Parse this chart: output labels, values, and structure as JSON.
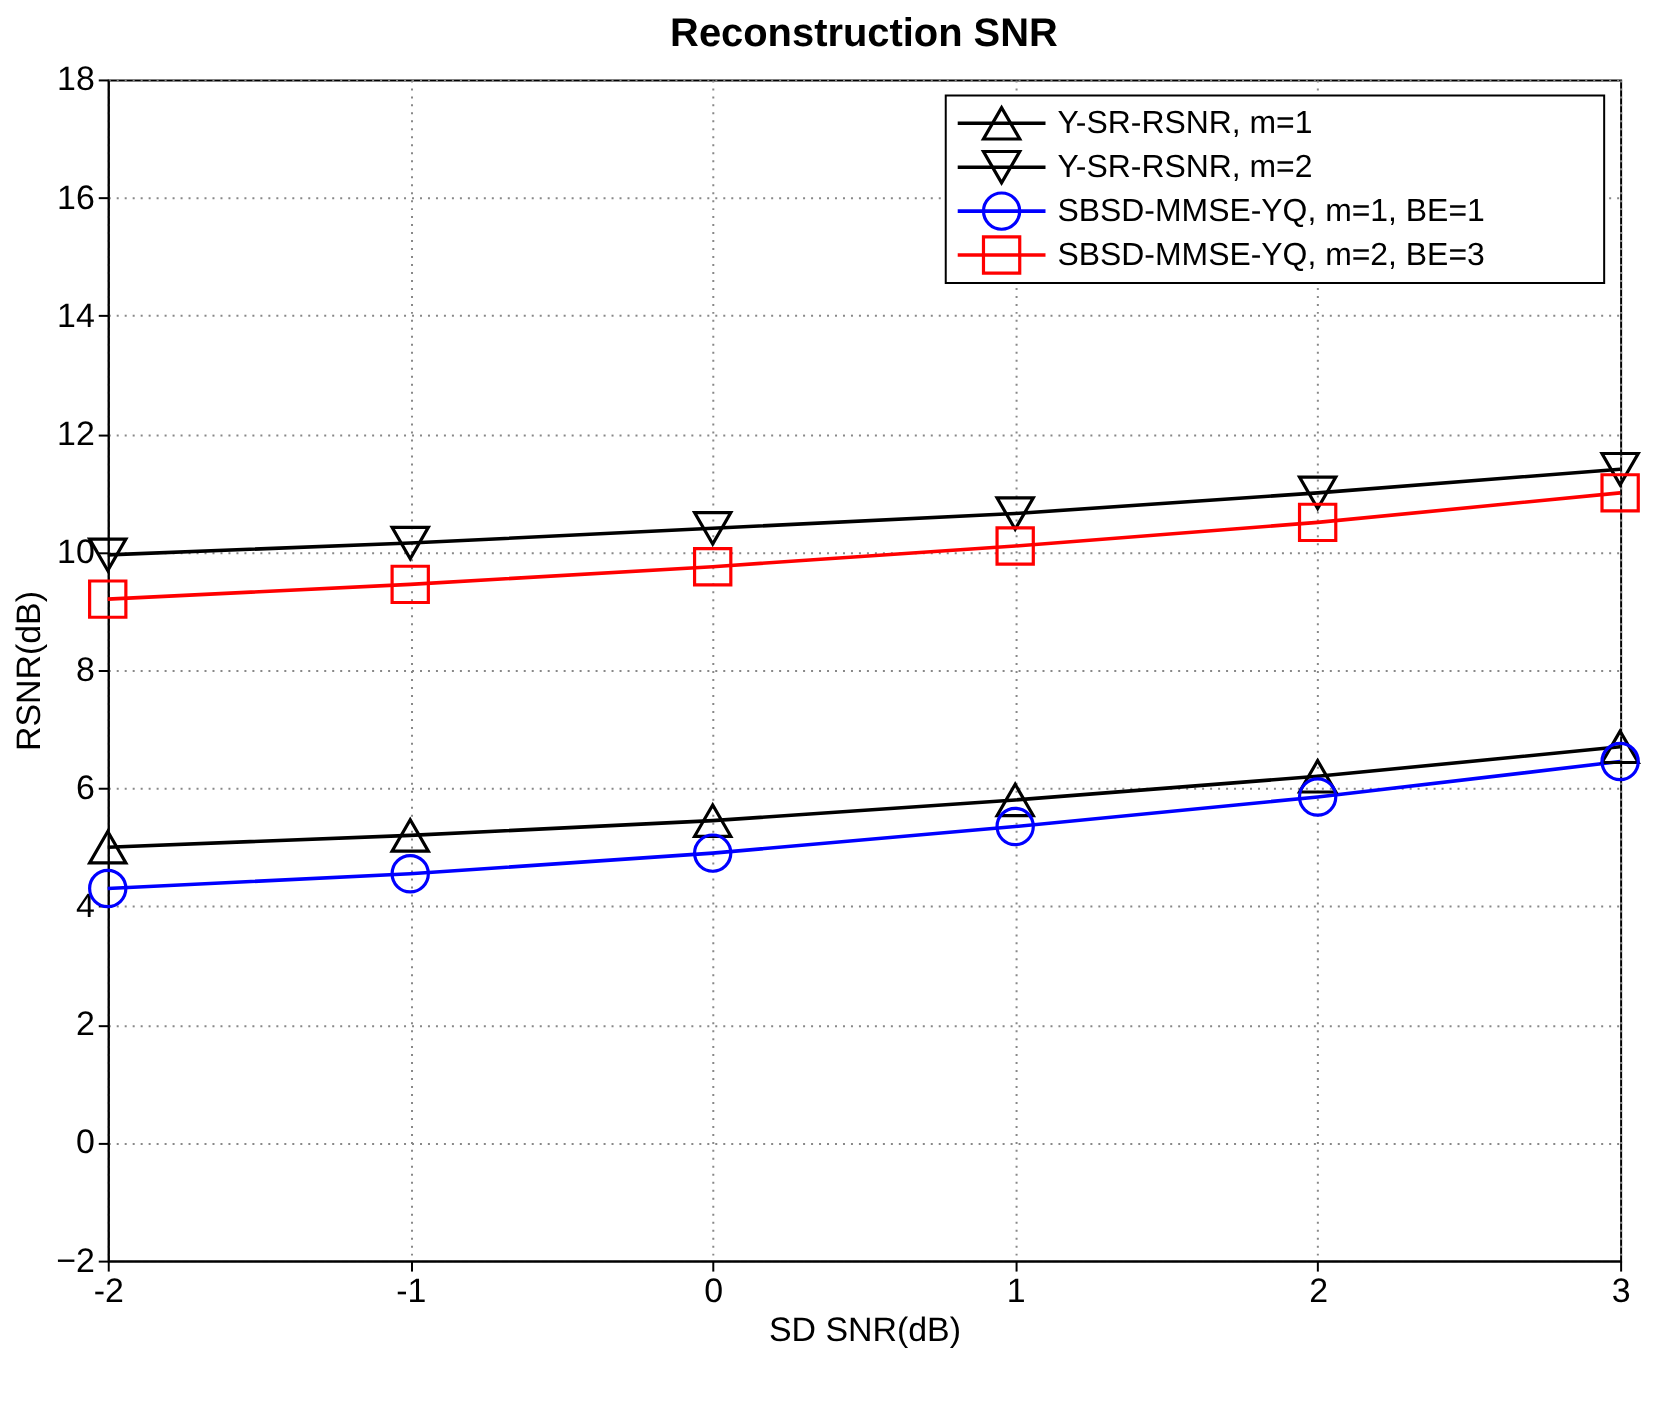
{
  "chart_data": {
    "type": "line",
    "title": "Reconstruction SNR",
    "xlabel": "SD SNR(dB)",
    "ylabel": "RSNR(dB)",
    "x": [
      -2,
      -1,
      0,
      1,
      2,
      3
    ],
    "series": [
      {
        "name": "Y-SR-RSNR, m=1",
        "color": "#000000",
        "marker": "triangle",
        "values": [
          5.0,
          5.2,
          5.45,
          5.8,
          6.2,
          6.7
        ]
      },
      {
        "name": "Y-SR-RSNR, m=2",
        "color": "#000000",
        "marker": "triangle-down",
        "values": [
          9.95,
          10.15,
          10.4,
          10.65,
          11.0,
          11.4
        ]
      },
      {
        "name": "SBSD-MMSE-YQ, m=1, BE=1",
        "color": "#0000ff",
        "marker": "circle",
        "values": [
          4.3,
          4.55,
          4.9,
          5.35,
          5.85,
          6.45
        ]
      },
      {
        "name": "SBSD-MMSE-YQ, m=2, BE=3",
        "color": "#ff0000",
        "marker": "square",
        "values": [
          9.2,
          9.45,
          9.75,
          10.1,
          10.5,
          11.0
        ]
      }
    ],
    "xlim": [
      -2,
      3
    ],
    "xticks": [
      {
        "value": -2,
        "label": "-2"
      },
      {
        "value": -1,
        "label": "-1"
      },
      {
        "value": 0,
        "label": "0"
      },
      {
        "value": 1,
        "label": "1"
      },
      {
        "value": 2,
        "label": "2"
      },
      {
        "value": 3,
        "label": "3"
      }
    ],
    "ylim": [
      -2,
      18
    ],
    "yticks": [
      -2,
      0,
      2,
      4,
      6,
      8,
      10,
      12,
      14,
      16,
      18
    ],
    "grid": true,
    "legend": "top right",
    "line_style": "solid"
  }
}
